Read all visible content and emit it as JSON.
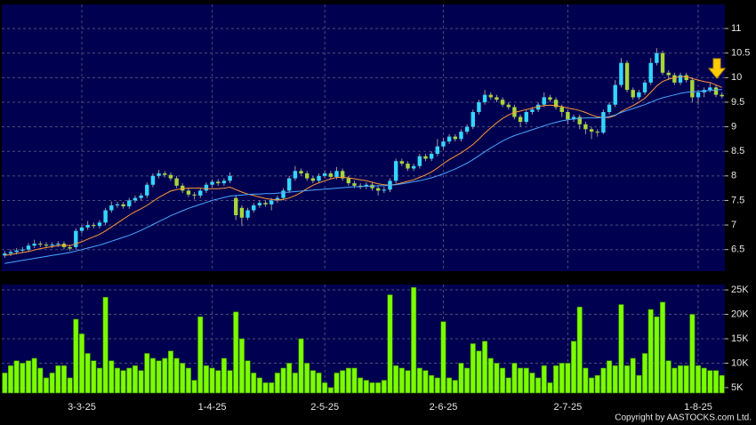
{
  "chart_data": [
    {
      "type": "candlestick",
      "categories": [
        null,
        null,
        null,
        null,
        null,
        null,
        null,
        null,
        null,
        null,
        null,
        null,
        null,
        "3-3-25",
        null,
        null,
        null,
        null,
        null,
        null,
        null,
        null,
        null,
        null,
        null,
        null,
        null,
        null,
        null,
        null,
        null,
        null,
        null,
        null,
        null,
        "1-4-25",
        null,
        null,
        null,
        null,
        null,
        null,
        null,
        null,
        null,
        null,
        null,
        null,
        null,
        null,
        null,
        null,
        null,
        null,
        "2-5-25",
        null,
        null,
        null,
        null,
        null,
        null,
        null,
        null,
        null,
        null,
        null,
        null,
        null,
        null,
        null,
        null,
        null,
        null,
        null,
        "2-6-25",
        null,
        null,
        null,
        null,
        null,
        null,
        null,
        null,
        null,
        null,
        null,
        null,
        null,
        null,
        null,
        null,
        null,
        null,
        null,
        null,
        "2-7-25",
        null,
        null,
        null,
        null,
        null,
        null,
        null,
        null,
        null,
        null,
        null,
        null,
        null,
        null,
        null,
        null,
        null,
        null,
        null,
        null,
        null,
        "1-8-25",
        null,
        null,
        null,
        null
      ],
      "open": [
        6.38,
        6.42,
        6.45,
        6.48,
        6.5,
        6.58,
        6.62,
        6.6,
        6.58,
        6.6,
        6.62,
        6.55,
        6.55,
        6.88,
        6.95,
        7.0,
        6.98,
        7.05,
        7.3,
        7.4,
        7.42,
        7.38,
        7.5,
        7.55,
        7.6,
        7.82,
        8.0,
        8.05,
        8.02,
        7.95,
        7.8,
        7.7,
        7.62,
        7.6,
        7.7,
        7.82,
        7.88,
        7.85,
        7.9,
        7.55,
        7.35,
        7.15,
        7.3,
        7.4,
        7.45,
        7.42,
        7.5,
        7.55,
        7.7,
        7.95,
        8.1,
        8.05,
        7.95,
        7.9,
        8.0,
        8.05,
        7.98,
        8.1,
        7.95,
        7.85,
        7.8,
        7.78,
        7.82,
        7.75,
        7.7,
        7.72,
        7.9,
        8.3,
        8.25,
        8.15,
        8.2,
        8.4,
        8.35,
        8.45,
        8.6,
        8.7,
        8.8,
        8.75,
        8.9,
        9.0,
        9.3,
        9.5,
        9.65,
        9.6,
        9.55,
        9.45,
        9.4,
        9.2,
        9.1,
        9.3,
        9.35,
        9.45,
        9.6,
        9.55,
        9.4,
        9.3,
        9.15,
        9.2,
        9.05,
        8.95,
        8.9,
        8.88,
        9.3,
        9.45,
        9.85,
        10.3,
        9.75,
        9.6,
        9.7,
        9.9,
        10.3,
        10.5,
        10.1,
        10.05,
        9.9,
        10.05,
        9.95,
        9.6,
        9.7,
        9.75,
        9.8,
        9.65
      ],
      "high": [
        6.47,
        6.5,
        6.53,
        6.55,
        6.63,
        6.7,
        6.67,
        6.65,
        6.65,
        6.67,
        6.67,
        6.6,
        6.93,
        7.0,
        7.08,
        7.05,
        7.1,
        7.35,
        7.48,
        7.47,
        7.47,
        7.55,
        7.6,
        7.65,
        7.87,
        8.05,
        8.12,
        8.1,
        8.07,
        8.0,
        7.85,
        7.75,
        7.67,
        7.75,
        7.87,
        7.93,
        7.93,
        7.95,
        8.07,
        7.6,
        7.4,
        7.35,
        7.45,
        7.5,
        7.5,
        7.55,
        7.6,
        7.75,
        8.0,
        8.2,
        8.15,
        8.1,
        8.0,
        8.05,
        8.1,
        8.1,
        8.18,
        8.15,
        8.0,
        7.9,
        7.85,
        7.87,
        7.87,
        7.8,
        7.78,
        7.95,
        8.35,
        8.35,
        8.3,
        8.25,
        8.45,
        8.45,
        8.5,
        8.75,
        8.78,
        8.85,
        8.85,
        8.95,
        9.05,
        9.35,
        9.55,
        9.75,
        9.7,
        9.65,
        9.6,
        9.5,
        9.45,
        9.25,
        9.35,
        9.4,
        9.5,
        9.7,
        9.65,
        9.6,
        9.45,
        9.35,
        9.25,
        9.25,
        9.1,
        9.0,
        8.95,
        9.35,
        9.5,
        9.95,
        10.4,
        10.35,
        9.8,
        9.75,
        9.95,
        10.4,
        10.6,
        10.55,
        10.15,
        10.1,
        10.1,
        10.1,
        10.0,
        9.75,
        9.8,
        9.9,
        9.85,
        9.7
      ],
      "low": [
        6.33,
        6.37,
        6.4,
        6.43,
        6.45,
        6.53,
        6.55,
        6.53,
        6.53,
        6.55,
        6.5,
        6.47,
        6.5,
        6.83,
        6.9,
        6.93,
        6.93,
        7.0,
        7.25,
        7.35,
        7.33,
        7.33,
        7.45,
        7.5,
        7.55,
        7.77,
        7.95,
        7.97,
        7.9,
        7.75,
        7.65,
        7.57,
        7.52,
        7.55,
        7.65,
        7.77,
        7.8,
        7.8,
        7.85,
        7.1,
        6.98,
        7.1,
        7.25,
        7.35,
        7.37,
        7.3,
        7.45,
        7.5,
        7.65,
        7.9,
        8.0,
        7.9,
        7.85,
        7.85,
        7.95,
        7.93,
        7.93,
        7.9,
        7.8,
        7.75,
        7.73,
        7.73,
        7.7,
        7.6,
        7.65,
        7.67,
        7.85,
        8.2,
        8.1,
        8.1,
        8.15,
        8.3,
        8.3,
        8.4,
        8.55,
        8.65,
        8.7,
        8.7,
        8.85,
        8.95,
        9.25,
        9.45,
        9.55,
        9.5,
        9.4,
        9.35,
        9.15,
        9.0,
        9.05,
        9.25,
        9.3,
        9.4,
        9.5,
        9.35,
        9.2,
        9.05,
        9.1,
        8.95,
        8.85,
        8.75,
        8.8,
        8.85,
        9.25,
        9.4,
        9.8,
        9.7,
        9.55,
        9.55,
        9.65,
        9.85,
        10.25,
        10.05,
        9.95,
        9.85,
        9.85,
        9.9,
        9.5,
        9.45,
        9.6,
        9.7,
        9.6,
        9.58
      ],
      "close": [
        6.42,
        6.45,
        6.48,
        6.5,
        6.58,
        6.62,
        6.6,
        6.58,
        6.6,
        6.62,
        6.55,
        6.52,
        6.88,
        6.95,
        7.0,
        6.98,
        7.05,
        7.3,
        7.4,
        7.42,
        7.38,
        7.5,
        7.55,
        7.6,
        7.82,
        8.0,
        8.05,
        8.02,
        7.95,
        7.8,
        7.7,
        7.62,
        7.6,
        7.7,
        7.82,
        7.88,
        7.85,
        7.9,
        8.0,
        7.2,
        7.15,
        7.3,
        7.4,
        7.45,
        7.42,
        7.5,
        7.55,
        7.7,
        7.95,
        8.1,
        8.05,
        7.95,
        7.9,
        8.0,
        8.05,
        7.98,
        8.1,
        7.95,
        7.85,
        7.8,
        7.78,
        7.82,
        7.75,
        7.7,
        7.72,
        7.9,
        8.3,
        8.25,
        8.15,
        8.2,
        8.4,
        8.35,
        8.45,
        8.6,
        8.7,
        8.8,
        8.75,
        8.9,
        9.0,
        9.3,
        9.5,
        9.65,
        9.6,
        9.55,
        9.45,
        9.4,
        9.2,
        9.1,
        9.3,
        9.35,
        9.45,
        9.6,
        9.55,
        9.4,
        9.3,
        9.15,
        9.2,
        9.05,
        8.95,
        8.9,
        8.88,
        9.3,
        9.45,
        9.85,
        10.3,
        9.75,
        9.6,
        9.7,
        9.9,
        10.3,
        10.5,
        10.1,
        10.05,
        9.9,
        10.05,
        9.95,
        9.6,
        9.7,
        9.75,
        9.8,
        9.65,
        9.62
      ],
      "up_color": "#33d6ff",
      "down_color": "#a6d63a",
      "series": [
        {
          "type": "line",
          "color": "#ff9933",
          "values": [
            6.38,
            6.4,
            6.42,
            6.44,
            6.46,
            6.49,
            6.52,
            6.54,
            6.56,
            6.58,
            6.59,
            6.58,
            6.62,
            6.66,
            6.71,
            6.76,
            6.81,
            6.88,
            6.96,
            7.04,
            7.12,
            7.2,
            7.27,
            7.33,
            7.4,
            7.48,
            7.56,
            7.63,
            7.69,
            7.72,
            7.74,
            7.75,
            7.75,
            7.75,
            7.74,
            7.74,
            7.74,
            7.75,
            7.77,
            7.72,
            7.67,
            7.63,
            7.6,
            7.57,
            7.54,
            7.52,
            7.51,
            7.52,
            7.55,
            7.6,
            7.66,
            7.74,
            7.81,
            7.86,
            7.9,
            7.94,
            7.97,
            7.97,
            7.96,
            7.94,
            7.92,
            7.9,
            7.87,
            7.84,
            7.82,
            7.81,
            7.83,
            7.86,
            7.89,
            7.92,
            7.97,
            8.02,
            8.08,
            8.16,
            8.25,
            8.33,
            8.4,
            8.47,
            8.55,
            8.64,
            8.75,
            8.87,
            8.98,
            9.08,
            9.17,
            9.24,
            9.29,
            9.32,
            9.35,
            9.38,
            9.41,
            9.43,
            9.44,
            9.43,
            9.41,
            9.38,
            9.36,
            9.33,
            9.29,
            9.24,
            9.2,
            9.19,
            9.19,
            9.23,
            9.31,
            9.37,
            9.43,
            9.5,
            9.58,
            9.7,
            9.83,
            9.92,
            9.97,
            10.0,
            10.02,
            10.02,
            9.98,
            9.95,
            9.92,
            9.9,
            9.85,
            9.8
          ]
        },
        {
          "type": "line",
          "color": "#4aa8ff",
          "values": [
            6.22,
            6.24,
            6.26,
            6.28,
            6.3,
            6.32,
            6.34,
            6.36,
            6.38,
            6.4,
            6.42,
            6.44,
            6.47,
            6.5,
            6.53,
            6.56,
            6.59,
            6.63,
            6.67,
            6.71,
            6.75,
            6.79,
            6.84,
            6.89,
            6.95,
            7.01,
            7.07,
            7.13,
            7.19,
            7.24,
            7.29,
            7.34,
            7.38,
            7.42,
            7.46,
            7.5,
            7.53,
            7.56,
            7.59,
            7.6,
            7.61,
            7.62,
            7.63,
            7.63,
            7.64,
            7.64,
            7.65,
            7.66,
            7.67,
            7.68,
            7.69,
            7.7,
            7.71,
            7.72,
            7.73,
            7.74,
            7.75,
            7.76,
            7.77,
            7.78,
            7.78,
            7.79,
            7.79,
            7.8,
            7.8,
            7.81,
            7.82,
            7.84,
            7.86,
            7.88,
            7.9,
            7.93,
            7.96,
            8.0,
            8.04,
            8.09,
            8.14,
            8.2,
            8.26,
            8.33,
            8.41,
            8.49,
            8.57,
            8.64,
            8.71,
            8.77,
            8.82,
            8.86,
            8.9,
            8.94,
            8.98,
            9.02,
            9.06,
            9.09,
            9.12,
            9.14,
            9.16,
            9.17,
            9.18,
            9.18,
            9.18,
            9.19,
            9.21,
            9.24,
            9.29,
            9.33,
            9.37,
            9.41,
            9.45,
            9.5,
            9.55,
            9.59,
            9.62,
            9.65,
            9.68,
            9.7,
            9.71,
            9.72,
            9.73,
            9.74,
            9.75,
            9.76
          ]
        }
      ],
      "ylim": [
        6.06,
        11.49
      ],
      "yticks": [
        6.5,
        7,
        7.5,
        8,
        8.5,
        9,
        9.5,
        10,
        10.5,
        11
      ],
      "grid": true
    },
    {
      "type": "bar",
      "color": "#7cfc00",
      "values": [
        8000,
        9500,
        10500,
        10000,
        10500,
        11000,
        9000,
        7000,
        8000,
        9500,
        9500,
        7000,
        19000,
        16000,
        12000,
        10500,
        9000,
        23500,
        10500,
        9000,
        8500,
        9000,
        9500,
        8500,
        12000,
        11000,
        10500,
        11000,
        12500,
        11000,
        10000,
        9000,
        6500,
        19500,
        9500,
        9000,
        8500,
        11000,
        8500,
        20500,
        15000,
        10500,
        8000,
        7000,
        6000,
        6000,
        8000,
        9000,
        10000,
        8000,
        15000,
        10000,
        8500,
        8000,
        6000,
        5000,
        8000,
        8500,
        9000,
        9000,
        7000,
        6500,
        6000,
        6000,
        6500,
        24000,
        9500,
        9000,
        8500,
        25500,
        9000,
        8500,
        7500,
        7000,
        18500,
        7000,
        6500,
        10000,
        9000,
        14000,
        12500,
        14500,
        11000,
        10000,
        9000,
        7000,
        10000,
        9000,
        9000,
        8000,
        7000,
        9500,
        6000,
        9500,
        10000,
        10000,
        14500,
        21500,
        9000,
        7000,
        7500,
        9000,
        10500,
        9500,
        22000,
        9500,
        11000,
        7500,
        12000,
        21000,
        19500,
        22500,
        10500,
        9000,
        9500,
        9500,
        20000,
        9500,
        9000,
        8500,
        8500,
        7500
      ],
      "ylim": [
        3900,
        26100
      ],
      "yticks": [
        {
          "value": 5000,
          "label": "5K"
        },
        {
          "value": 10000,
          "label": "10K"
        },
        {
          "value": 15000,
          "label": "15K"
        },
        {
          "value": 20000,
          "label": "20K"
        },
        {
          "value": 25000,
          "label": "25K"
        }
      ],
      "grid": true
    }
  ],
  "copyright": "Copyright by AASTOCKS.com Ltd."
}
